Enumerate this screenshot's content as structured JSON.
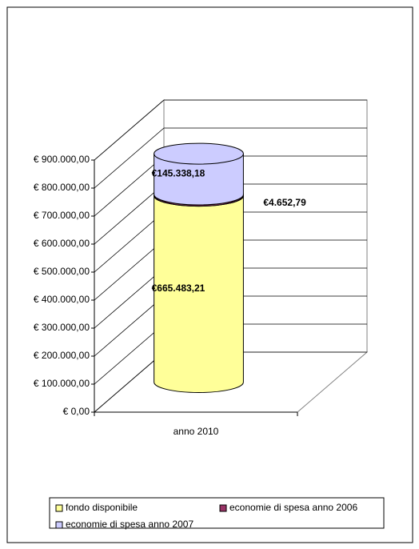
{
  "chart_data": {
    "type": "bar3d_cylinder_stacked",
    "categories": [
      "anno 2010"
    ],
    "series": [
      {
        "name": "fondo disponibile",
        "color": "#ffff99",
        "values": [
          665483.21
        ],
        "value_labels": [
          "€665.483,21"
        ]
      },
      {
        "name": "economie di spesa anno 2006",
        "color": "#993366",
        "values": [
          4652.79
        ],
        "value_labels": [
          "€4.652,79"
        ]
      },
      {
        "name": "economie di spesa anno 2007",
        "color": "#ccccff",
        "values": [
          145338.18
        ],
        "value_labels": [
          "€145.338,18"
        ]
      }
    ],
    "ylim": [
      0,
      900000
    ],
    "yticks": [
      {
        "value": 0,
        "label": "€ 0,00"
      },
      {
        "value": 100000,
        "label": "€ 100.000,00"
      },
      {
        "value": 200000,
        "label": "€ 200.000,00"
      },
      {
        "value": 300000,
        "label": "€ 300.000,00"
      },
      {
        "value": 400000,
        "label": "€ 400.000,00"
      },
      {
        "value": 500000,
        "label": "€ 500.000,00"
      },
      {
        "value": 600000,
        "label": "€ 600.000,00"
      },
      {
        "value": 700000,
        "label": "€ 700.000,00"
      },
      {
        "value": 800000,
        "label": "€ 800.000,00"
      },
      {
        "value": 900000,
        "label": "€ 900.000,00"
      }
    ],
    "grid": true
  }
}
